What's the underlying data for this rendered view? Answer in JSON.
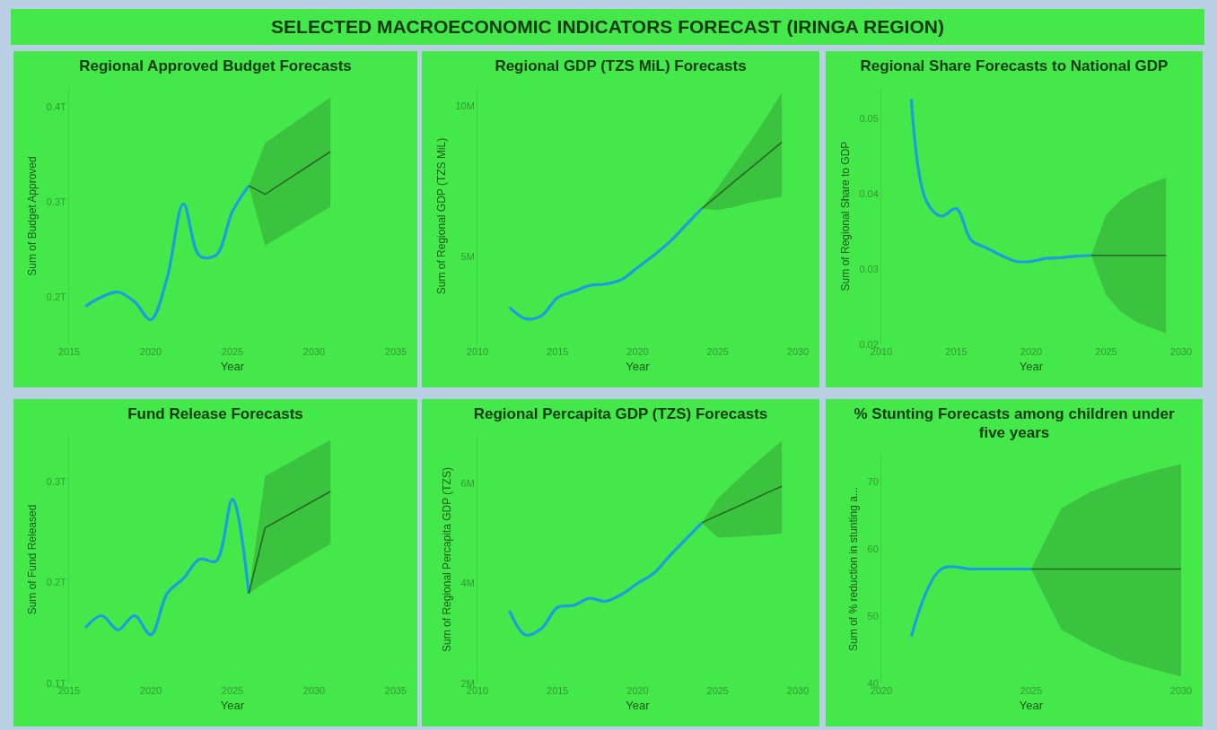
{
  "chart_data": [
    {
      "type": "other",
      "title": "SELECTED MACROECONOMIC INDICATORS FORECAST (IRINGA REGION)"
    },
    {
      "type": "line",
      "title": "Regional Approved Budget Forecasts",
      "xlabel": "Year",
      "ylabel": "Sum of Budget Approved",
      "xlim": [
        2015,
        2035
      ],
      "xticks": [
        2015,
        2020,
        2025,
        2030,
        2035
      ],
      "ylim": [
        0.15,
        0.42
      ],
      "yticks": [
        {
          "value": 0.2,
          "label": "0.2T"
        },
        {
          "value": 0.3,
          "label": "0.3T"
        },
        {
          "value": 0.4,
          "label": "0.4T"
        }
      ],
      "series": [
        {
          "x": [
            2016,
            2017,
            2018,
            2019,
            2020,
            2021,
            2022,
            2023,
            2024,
            2025,
            2026
          ],
          "values": [
            0.19,
            0.2,
            0.205,
            0.195,
            0.176,
            0.22,
            0.298,
            0.243,
            0.244,
            0.29,
            0.317
          ],
          "color": "#1a9ee0"
        },
        {
          "x": [
            2026,
            2027,
            2031
          ],
          "values": [
            0.317,
            0.308,
            0.353
          ],
          "lower": [
            0.317,
            0.254,
            0.295
          ],
          "upper": [
            0.317,
            0.362,
            0.41
          ],
          "color": "#236b23"
        }
      ]
    },
    {
      "type": "line",
      "title": "Regional GDP (TZS MiL) Forecasts",
      "xlabel": "Year",
      "ylabel": "Sum of Regional GDP (TZS MiL)",
      "xlim": [
        2010,
        2030
      ],
      "xticks": [
        2010,
        2015,
        2020,
        2025,
        2030
      ],
      "ylim": [
        2.1,
        10.6
      ],
      "yticks": [
        {
          "value": 5,
          "label": "5M"
        },
        {
          "value": 10,
          "label": "10M"
        }
      ],
      "series": [
        {
          "x": [
            2012,
            2013,
            2014,
            2015,
            2016,
            2017,
            2018,
            2019,
            2020,
            2021,
            2022,
            2023,
            2024
          ],
          "values": [
            3.33,
            2.95,
            3.05,
            3.65,
            3.85,
            4.05,
            4.1,
            4.25,
            4.65,
            5.05,
            5.5,
            6.05,
            6.6
          ],
          "color": "#1a9ee0"
        },
        {
          "x": [
            2024,
            2025,
            2026,
            2027,
            2028,
            2029
          ],
          "values": [
            6.6,
            7.04,
            7.48,
            7.92,
            8.36,
            8.8
          ],
          "lower": [
            6.6,
            6.55,
            6.65,
            6.8,
            6.9,
            7.0
          ],
          "upper": [
            6.6,
            7.3,
            8.05,
            8.8,
            9.6,
            10.45
          ],
          "color": "#236b23"
        }
      ]
    },
    {
      "type": "line",
      "title": "Regional Share Forecasts to National GDP",
      "xlabel": "Year",
      "ylabel": "Sum of Regional Share to GDP",
      "xlim": [
        2010,
        2030
      ],
      "xticks": [
        2010,
        2015,
        2020,
        2025,
        2030
      ],
      "ylim": [
        0.02,
        0.054
      ],
      "yticks": [
        {
          "value": 0.02,
          "label": "0.02"
        },
        {
          "value": 0.03,
          "label": "0.03"
        },
        {
          "value": 0.04,
          "label": "0.04"
        },
        {
          "value": 0.05,
          "label": "0.05"
        }
      ],
      "series": [
        {
          "x": [
            2012,
            2013,
            2014,
            2015,
            2016,
            2017,
            2018,
            2019,
            2020,
            2021,
            2022,
            2023,
            2024
          ],
          "values": [
            0.0525,
            0.039,
            0.037,
            0.038,
            0.0338,
            0.0328,
            0.0318,
            0.031,
            0.031,
            0.0314,
            0.0315,
            0.0317,
            0.0318
          ],
          "color": "#1a9ee0"
        },
        {
          "x": [
            2024,
            2025,
            2026,
            2027,
            2028,
            2029
          ],
          "values": [
            0.0318,
            0.0318,
            0.0318,
            0.0318,
            0.0318,
            0.0318
          ],
          "lower": [
            0.0318,
            0.0265,
            0.0243,
            0.023,
            0.0222,
            0.0215
          ],
          "upper": [
            0.0318,
            0.0372,
            0.0392,
            0.0405,
            0.0414,
            0.0421
          ],
          "color": "#236b23"
        }
      ]
    },
    {
      "type": "line",
      "title": "Fund Release Forecasts",
      "xlabel": "Year",
      "ylabel": "Sum of Fund Released",
      "xlim": [
        2015,
        2035
      ],
      "xticks": [
        2015,
        2020,
        2025,
        2030,
        2035
      ],
      "ylim": [
        0.1,
        0.345
      ],
      "yticks": [
        {
          "value": 0.1,
          "label": "0.1T"
        },
        {
          "value": 0.2,
          "label": "0.2T"
        },
        {
          "value": 0.3,
          "label": "0.3T"
        }
      ],
      "series": [
        {
          "x": [
            2016,
            2017,
            2018,
            2019,
            2020,
            2021,
            2022,
            2023,
            2024,
            2025,
            2026
          ],
          "values": [
            0.155,
            0.167,
            0.153,
            0.167,
            0.148,
            0.189,
            0.204,
            0.223,
            0.221,
            0.282,
            0.189
          ],
          "color": "#1a9ee0"
        },
        {
          "x": [
            2026,
            2027,
            2031
          ],
          "values": [
            0.189,
            0.254,
            0.29
          ],
          "lower": [
            0.189,
            0.2,
            0.238
          ],
          "upper": [
            0.189,
            0.305,
            0.341
          ],
          "color": "#236b23"
        }
      ]
    },
    {
      "type": "line",
      "title": "Regional Percapita GDP (TZS) Forecasts",
      "xlabel": "Year",
      "ylabel": "Sum of Regional Percapita GDP (TZS)",
      "xlim": [
        2010,
        2030
      ],
      "xticks": [
        2010,
        2015,
        2020,
        2025,
        2030
      ],
      "ylim": [
        2,
        6.95
      ],
      "yticks": [
        {
          "value": 2,
          "label": "2M"
        },
        {
          "value": 4,
          "label": "4M"
        },
        {
          "value": 6,
          "label": "6M"
        }
      ],
      "series": [
        {
          "x": [
            2012,
            2013,
            2014,
            2015,
            2016,
            2017,
            2018,
            2019,
            2020,
            2021,
            2022,
            2023,
            2024
          ],
          "values": [
            3.45,
            2.97,
            3.1,
            3.52,
            3.56,
            3.7,
            3.64,
            3.78,
            4.0,
            4.2,
            4.55,
            4.88,
            5.21
          ],
          "color": "#1a9ee0"
        },
        {
          "x": [
            2024,
            2025,
            2026,
            2027,
            2028,
            2029
          ],
          "values": [
            5.21,
            5.36,
            5.5,
            5.65,
            5.8,
            5.94
          ],
          "lower": [
            5.21,
            4.92,
            4.93,
            4.95,
            4.97,
            5.0
          ],
          "upper": [
            5.21,
            5.7,
            6.0,
            6.3,
            6.58,
            6.85
          ],
          "color": "#236b23"
        }
      ]
    },
    {
      "type": "line",
      "title": "% Stunting Forecasts among children under five years",
      "xlabel": "Year",
      "ylabel": "Sum of % reduction in stunting a...",
      "xlim": [
        2020,
        2030
      ],
      "xticks": [
        2020,
        2025,
        2030
      ],
      "ylim": [
        40,
        74
      ],
      "yticks": [
        40,
        50,
        60,
        70
      ],
      "series": [
        {
          "x": [
            2021,
            2022,
            2023,
            2024,
            2025
          ],
          "values": [
            47,
            57,
            57,
            57,
            57
          ],
          "color": "#1a9ee0"
        },
        {
          "x": [
            2025,
            2026,
            2027,
            2028,
            2029,
            2030
          ],
          "values": [
            57,
            57,
            57,
            57,
            57,
            57
          ],
          "lower": [
            57,
            48,
            45.5,
            43.5,
            42.2,
            41
          ],
          "upper": [
            57,
            66,
            68.5,
            70.2,
            71.5,
            72.6
          ],
          "color": "#236b23"
        }
      ]
    }
  ]
}
